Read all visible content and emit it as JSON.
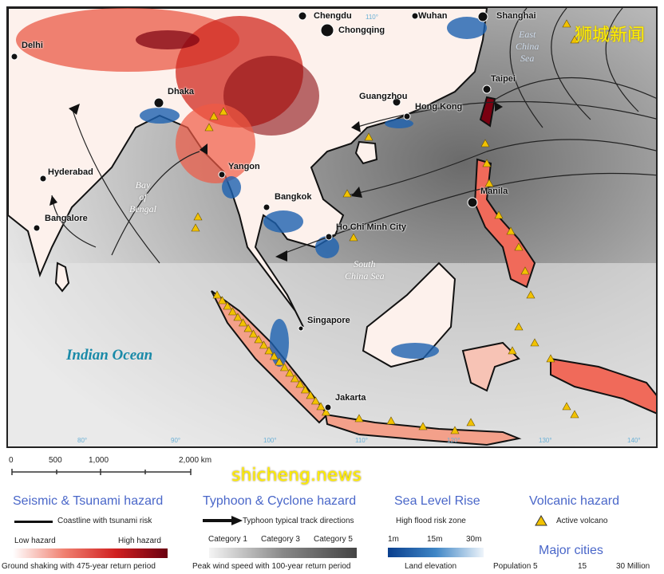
{
  "map": {
    "cities": [
      "Chengdu",
      "Chongqing",
      "Wuhan",
      "Shanghai",
      "Delhi",
      "Dhaka",
      "Guangzhou",
      "Hong Kong",
      "Taipei",
      "Hyderabad",
      "Bangalore",
      "Yangon",
      "Bangkok",
      "Manila",
      "Ho Chi Minh City",
      "Singapore",
      "Jakarta"
    ],
    "seas": {
      "bay_of_bengal": [
        "Bay",
        "of",
        "Bengal"
      ],
      "east_china_sea": [
        "East",
        "China",
        "Sea"
      ],
      "south_china_sea": [
        "South",
        "China Sea"
      ],
      "indian_ocean": "Indian Ocean"
    },
    "longitude_labels": {
      "top": "110°",
      "bottom": [
        "80°",
        "90°",
        "100°",
        "110°",
        "120°",
        "130°",
        "140°"
      ]
    }
  },
  "scale_bar": {
    "ticks": [
      "0",
      "500",
      "1,000",
      "2,000 km"
    ]
  },
  "legend": {
    "seismic": {
      "title": "Seismic & Tsunami hazard",
      "coastline": "Coastline with tsunami risk",
      "low": "Low hazard",
      "high": "High hazard",
      "caption": "Ground shaking with 475-year return period"
    },
    "typhoon": {
      "title": "Typhoon & Cyclone hazard",
      "track": "Typhoon typical track directions",
      "cat1": "Category 1",
      "cat3": "Category 3",
      "cat5": "Category 5",
      "caption": "Peak wind speed with 100-year return period"
    },
    "sea_level": {
      "title": "Sea Level Rise",
      "zone": "High flood risk zone",
      "m1": "1m",
      "m15": "15m",
      "m30": "30m",
      "caption": "Land elevation"
    },
    "volcanic": {
      "title": "Volcanic hazard",
      "item": "Active volcano"
    },
    "cities": {
      "title": "Major cities",
      "pop5": "Population 5",
      "pop15": "15",
      "pop30": "30 Million"
    }
  },
  "colors": {
    "hazard_low": "#fde9e2",
    "hazard_high": "#7a0010",
    "flood": "#0a4f9e",
    "volcano": "#f2c200",
    "legend_title": "#4a67c9"
  },
  "watermarks": {
    "cn": "狮城新闻",
    "en": "shicheng.news"
  }
}
